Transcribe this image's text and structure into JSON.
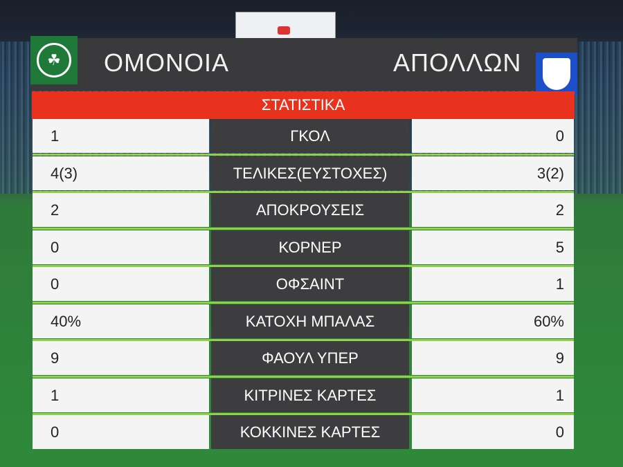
{
  "header": {
    "home_team": "ΟΜΟΝΟΙΑ",
    "away_team": "ΑΠΟΛΛΩΝ",
    "title": "ΣΤΑΤΙΣΤΙΚΑ"
  },
  "colors": {
    "banner": "#e8321e",
    "home": "#1f7a3a",
    "away": "#1d4fc8",
    "center": "#3d3d3f"
  },
  "stats": [
    {
      "home": "1",
      "label": "ΓΚΟΛ",
      "away": "0"
    },
    {
      "home": "4(3)",
      "label": "ΤΕΛΙΚΕΣ(ΕΥΣΤΟΧΕΣ)",
      "away": "3(2)"
    },
    {
      "home": "2",
      "label": "ΑΠΟΚΡΟΥΣΕΙΣ",
      "away": "2"
    },
    {
      "home": "0",
      "label": "ΚΟΡΝΕΡ",
      "away": "5"
    },
    {
      "home": "0",
      "label": "ΟΦΣΑΙΝΤ",
      "away": "1"
    },
    {
      "home": "40%",
      "label": "ΚΑΤΟΧΗ ΜΠΑΛΑΣ",
      "away": "60%"
    },
    {
      "home": "9",
      "label": "ΦΑΟΥΛ ΥΠΕΡ",
      "away": "9"
    },
    {
      "home": "1",
      "label": "ΚΙΤΡΙΝΕΣ ΚΑΡΤΕΣ",
      "away": "1"
    },
    {
      "home": "0",
      "label": "ΚΟΚΚΙΝΕΣ ΚΑΡΤΕΣ",
      "away": "0"
    }
  ]
}
